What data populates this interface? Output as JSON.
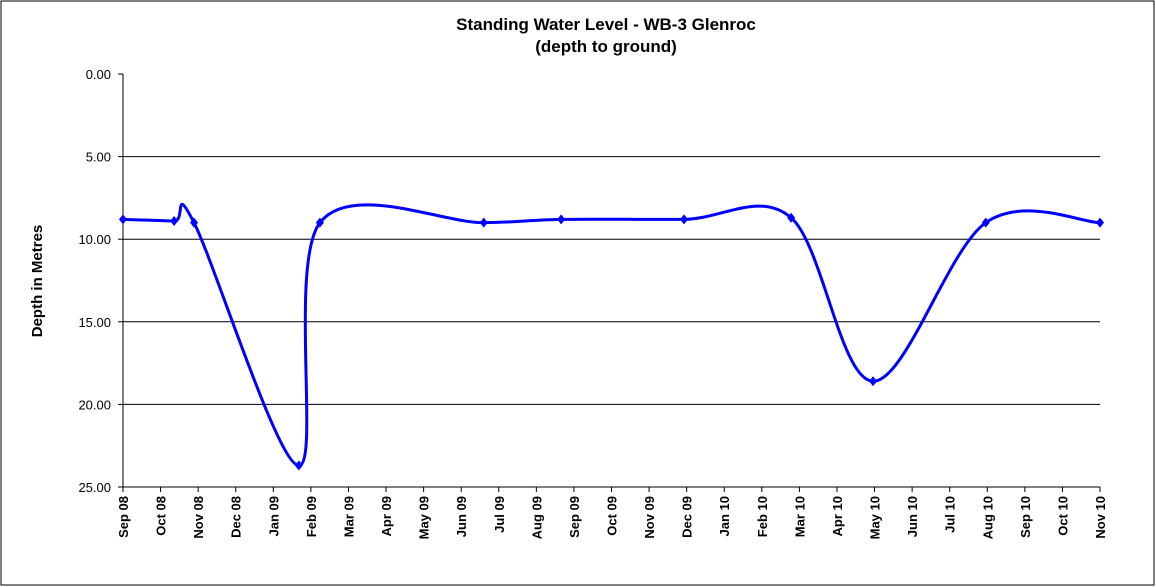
{
  "chart_data": {
    "type": "line",
    "title": [
      "Standing Water Level - WB-3 Glenroc",
      "(depth to ground)"
    ],
    "y_label": "Depth in Metres",
    "y_inverted": true,
    "grid": true,
    "xlim": [
      0,
      26
    ],
    "xticks": [
      {
        "value": 0,
        "label": "Sep 08"
      },
      {
        "value": 1,
        "label": "Oct 08"
      },
      {
        "value": 2,
        "label": "Nov 08"
      },
      {
        "value": 3,
        "label": "Dec 08"
      },
      {
        "value": 4,
        "label": "Jan 09"
      },
      {
        "value": 5,
        "label": "Feb 09"
      },
      {
        "value": 6,
        "label": "Mar 09"
      },
      {
        "value": 7,
        "label": "Apr 09"
      },
      {
        "value": 8,
        "label": "May 09"
      },
      {
        "value": 9,
        "label": "Jun 09"
      },
      {
        "value": 10,
        "label": "Jul 09"
      },
      {
        "value": 11,
        "label": "Aug 09"
      },
      {
        "value": 12,
        "label": "Sep 09"
      },
      {
        "value": 13,
        "label": "Oct 09"
      },
      {
        "value": 14,
        "label": "Nov 09"
      },
      {
        "value": 15,
        "label": "Dec 09"
      },
      {
        "value": 16,
        "label": "Jan 10"
      },
      {
        "value": 17,
        "label": "Feb 10"
      },
      {
        "value": 18,
        "label": "Mar 10"
      },
      {
        "value": 19,
        "label": "Apr 10"
      },
      {
        "value": 20,
        "label": "May 10"
      },
      {
        "value": 21,
        "label": "Jun 10"
      },
      {
        "value": 22,
        "label": "Jul 10"
      },
      {
        "value": 23,
        "label": "Aug 10"
      },
      {
        "value": 24,
        "label": "Sep 10"
      },
      {
        "value": 25,
        "label": "Oct 10"
      },
      {
        "value": 26,
        "label": "Nov 10"
      }
    ],
    "ylim": [
      0,
      25
    ],
    "yticks": [
      {
        "value": 0,
        "label": "0.00"
      },
      {
        "value": 5,
        "label": "5.00"
      },
      {
        "value": 10,
        "label": "10.00"
      },
      {
        "value": 15,
        "label": "15.00"
      },
      {
        "value": 20,
        "label": "20.00"
      },
      {
        "value": 25,
        "label": "25.00"
      }
    ],
    "series": [
      {
        "color": "#0000ff",
        "x": [
          0,
          1.36,
          1.89,
          4.68,
          5.24,
          9.6,
          11.66,
          14.93,
          17.78,
          19.96,
          22.96,
          26
        ],
        "values": [
          8.8,
          8.9,
          9.0,
          23.7,
          9.0,
          9.0,
          8.8,
          8.8,
          8.7,
          18.6,
          9.0,
          9.0
        ]
      }
    ]
  }
}
